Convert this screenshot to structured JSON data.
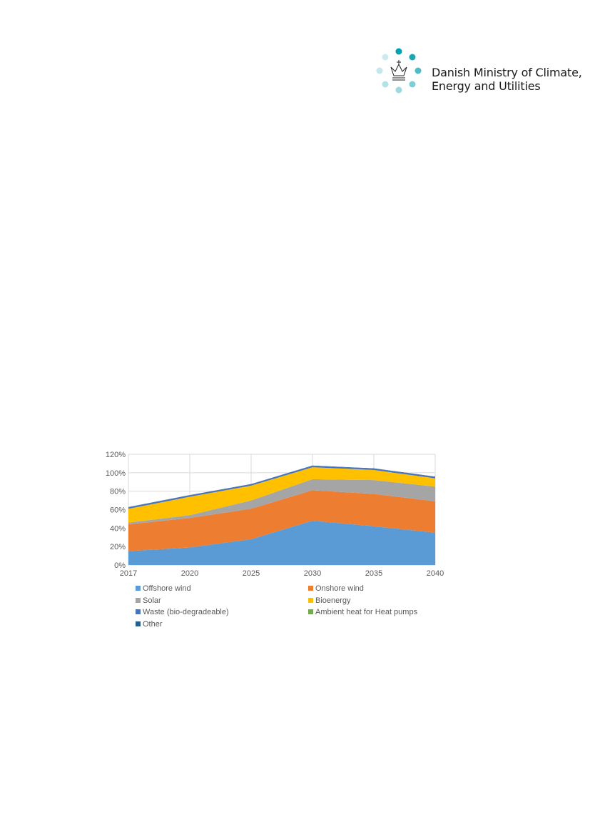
{
  "logo": {
    "line1": "Danish Ministry of Climate,",
    "line2": "Energy and Utilities"
  },
  "chart_data": {
    "type": "area",
    "stacked": true,
    "title": "",
    "xlabel": "",
    "ylabel": "",
    "x": [
      "2017",
      "2020",
      "2025",
      "2030",
      "2035",
      "2040"
    ],
    "ylim": [
      0,
      120
    ],
    "yticks": [
      "0%",
      "20%",
      "40%",
      "60%",
      "80%",
      "100%",
      "120%"
    ],
    "grid": true,
    "legend_position": "bottom",
    "series": [
      {
        "name": "Offshore wind",
        "color": "#5b9bd5",
        "values": [
          15,
          19,
          28,
          48,
          42,
          35
        ]
      },
      {
        "name": "Onshore wind",
        "color": "#ed7d31",
        "values": [
          29,
          32,
          33,
          33,
          35,
          34
        ]
      },
      {
        "name": "Solar",
        "color": "#a5a5a5",
        "values": [
          2,
          3,
          9,
          12,
          15,
          16
        ]
      },
      {
        "name": "Bioenergy",
        "color": "#ffc000",
        "values": [
          15,
          20,
          16,
          13,
          11,
          9
        ]
      },
      {
        "name": "Waste (bio-degradeable)",
        "color": "#4472c4",
        "values": [
          1.5,
          1.5,
          1.5,
          1.5,
          1.5,
          1.5
        ]
      },
      {
        "name": "Ambient heat for Heat pumps",
        "color": "#70ad47",
        "values": [
          0,
          0,
          0,
          0,
          0,
          0
        ]
      },
      {
        "name": "Other",
        "color": "#255e91",
        "values": [
          0.3,
          0.3,
          0.3,
          0.3,
          0.3,
          0.3
        ]
      }
    ]
  }
}
